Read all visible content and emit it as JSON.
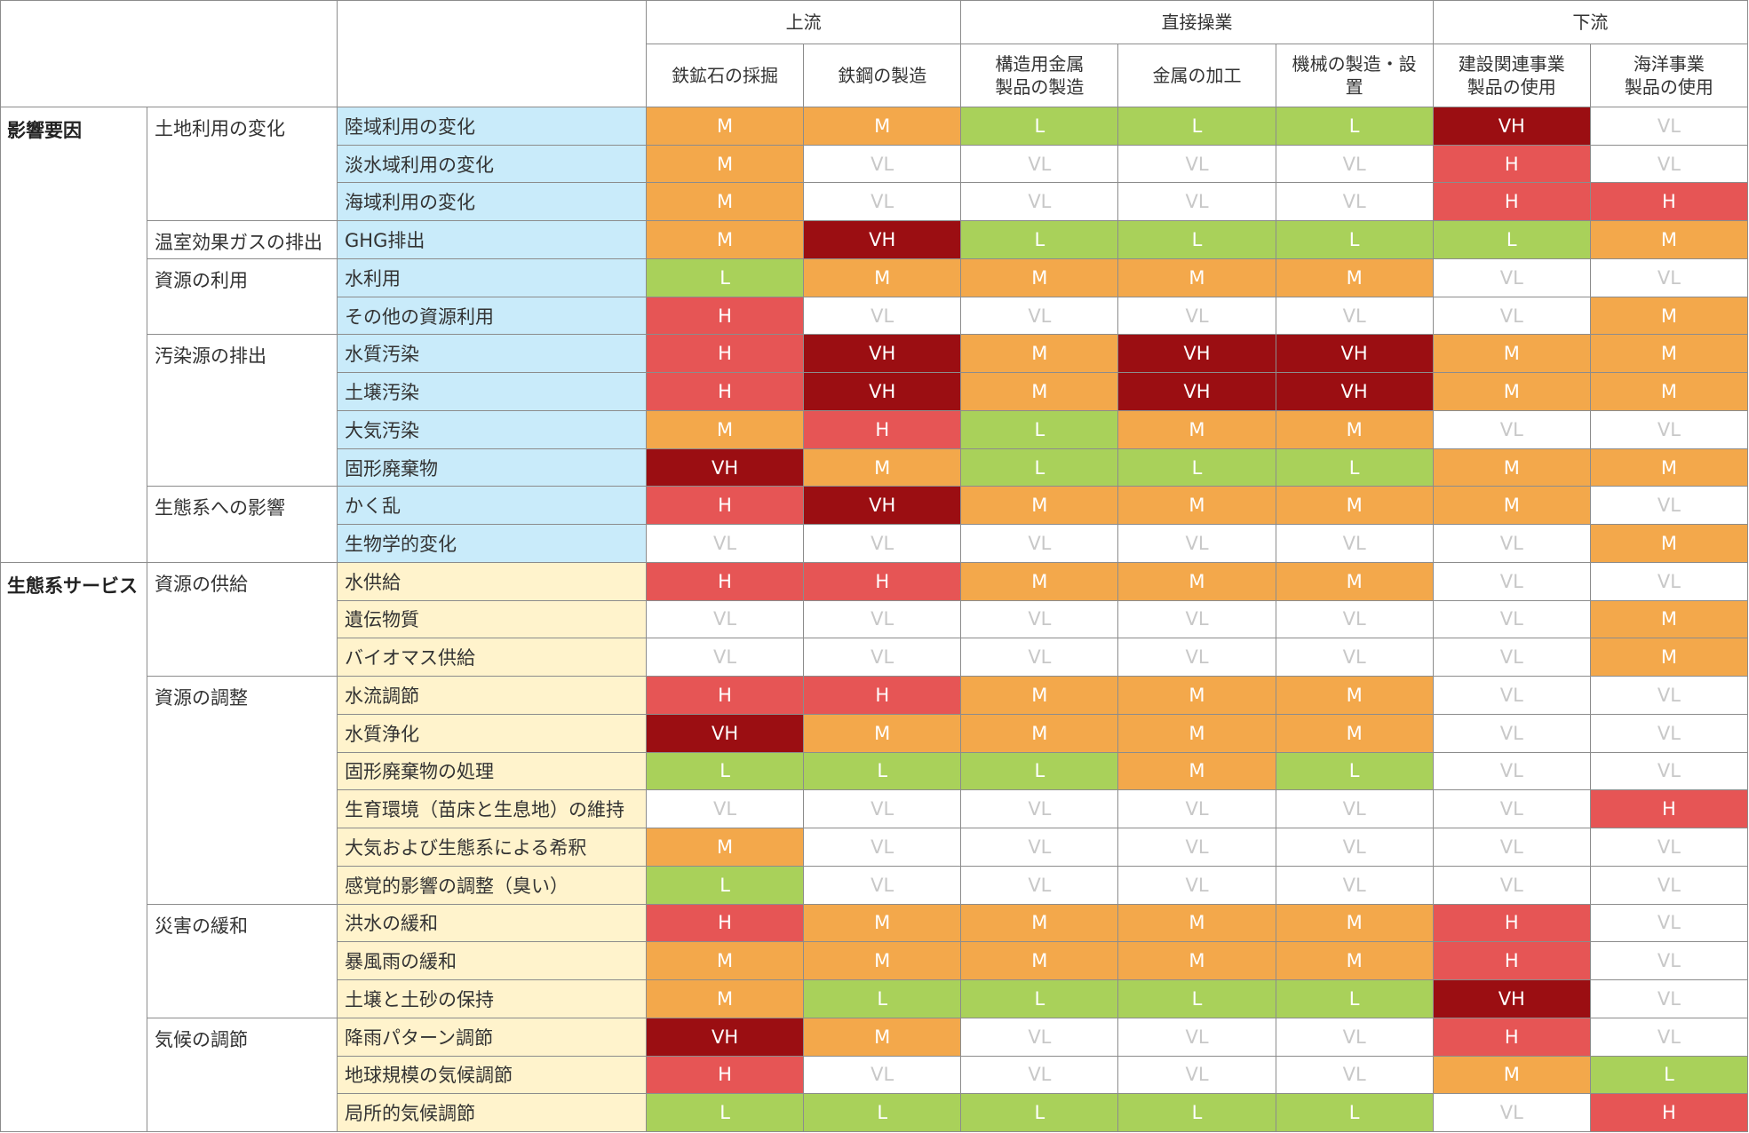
{
  "chart_data": {
    "type": "table",
    "stages": [
      {
        "label": "上流",
        "span": 2
      },
      {
        "label": "直接操業",
        "span": 3
      },
      {
        "label": "下流",
        "span": 2
      }
    ],
    "columns": [
      "鉄鉱石の採掘",
      "鉄鋼の製造",
      "構造用金属\n製品の製造",
      "金属の加工",
      "機械の製造・設\n置",
      "建設関連事業\n製品の使用",
      "海洋事業\n製品の使用"
    ],
    "levels": [
      "VL",
      "L",
      "M",
      "H",
      "VH"
    ],
    "level_colors": {
      "VL": "#ffffff",
      "L": "#a9d15a",
      "M": "#f3a84b",
      "H": "#e65555",
      "VH": "#9b0e12"
    },
    "level_text_colors": {
      "VL": "#c8c8c8",
      "L": "#ffffff",
      "M": "#ffffff",
      "H": "#ffffff",
      "VH": "#ffffff"
    },
    "categories": [
      {
        "label": "影響要因",
        "color": "#c9ebfa",
        "groups": [
          {
            "label": "土地利用の変化",
            "rows": [
              {
                "label": "陸域利用の変化",
                "values": [
                  "M",
                  "M",
                  "L",
                  "L",
                  "L",
                  "VH",
                  "VL"
                ]
              },
              {
                "label": "淡水域利用の変化",
                "values": [
                  "M",
                  "VL",
                  "VL",
                  "VL",
                  "VL",
                  "H",
                  "VL"
                ]
              },
              {
                "label": "海域利用の変化",
                "values": [
                  "M",
                  "VL",
                  "VL",
                  "VL",
                  "VL",
                  "H",
                  "H"
                ]
              }
            ]
          },
          {
            "label": "温室効果ガスの排出",
            "rows": [
              {
                "label": "GHG排出",
                "values": [
                  "M",
                  "VH",
                  "L",
                  "L",
                  "L",
                  "L",
                  "M"
                ]
              }
            ]
          },
          {
            "label": "資源の利用",
            "rows": [
              {
                "label": "水利用",
                "values": [
                  "L",
                  "M",
                  "M",
                  "M",
                  "M",
                  "VL",
                  "VL"
                ]
              },
              {
                "label": "その他の資源利用",
                "values": [
                  "H",
                  "VL",
                  "VL",
                  "VL",
                  "VL",
                  "VL",
                  "M"
                ]
              }
            ]
          },
          {
            "label": "汚染源の排出",
            "rows": [
              {
                "label": "水質汚染",
                "values": [
                  "H",
                  "VH",
                  "M",
                  "VH",
                  "VH",
                  "M",
                  "M"
                ]
              },
              {
                "label": "土壌汚染",
                "values": [
                  "H",
                  "VH",
                  "M",
                  "VH",
                  "VH",
                  "M",
                  "M"
                ]
              },
              {
                "label": "大気汚染",
                "values": [
                  "M",
                  "H",
                  "L",
                  "M",
                  "M",
                  "VL",
                  "VL"
                ]
              },
              {
                "label": "固形廃棄物",
                "values": [
                  "VH",
                  "M",
                  "L",
                  "L",
                  "L",
                  "M",
                  "M"
                ]
              }
            ]
          },
          {
            "label": "生態系への影響",
            "rows": [
              {
                "label": "かく乱",
                "values": [
                  "H",
                  "VH",
                  "M",
                  "M",
                  "M",
                  "M",
                  "VL"
                ]
              },
              {
                "label": "生物学的変化",
                "values": [
                  "VL",
                  "VL",
                  "VL",
                  "VL",
                  "VL",
                  "VL",
                  "M"
                ]
              }
            ]
          }
        ]
      },
      {
        "label": "生態系サービス",
        "color": "#fff3cc",
        "groups": [
          {
            "label": "資源の供給",
            "rows": [
              {
                "label": "水供給",
                "values": [
                  "H",
                  "H",
                  "M",
                  "M",
                  "M",
                  "VL",
                  "VL"
                ]
              },
              {
                "label": "遺伝物質",
                "values": [
                  "VL",
                  "VL",
                  "VL",
                  "VL",
                  "VL",
                  "VL",
                  "M"
                ]
              },
              {
                "label": "バイオマス供給",
                "values": [
                  "VL",
                  "VL",
                  "VL",
                  "VL",
                  "VL",
                  "VL",
                  "M"
                ]
              }
            ]
          },
          {
            "label": "資源の調整",
            "rows": [
              {
                "label": "水流調節",
                "values": [
                  "H",
                  "H",
                  "M",
                  "M",
                  "M",
                  "VL",
                  "VL"
                ]
              },
              {
                "label": "水質浄化",
                "values": [
                  "VH",
                  "M",
                  "M",
                  "M",
                  "M",
                  "VL",
                  "VL"
                ]
              },
              {
                "label": "固形廃棄物の処理",
                "values": [
                  "L",
                  "L",
                  "L",
                  "M",
                  "L",
                  "VL",
                  "VL"
                ]
              },
              {
                "label": "生育環境（苗床と生息地）の維持",
                "values": [
                  "VL",
                  "VL",
                  "VL",
                  "VL",
                  "VL",
                  "VL",
                  "H"
                ]
              },
              {
                "label": "大気および生態系による希釈",
                "values": [
                  "M",
                  "VL",
                  "VL",
                  "VL",
                  "VL",
                  "VL",
                  "VL"
                ]
              },
              {
                "label": "感覚的影響の調整（臭い）",
                "values": [
                  "L",
                  "VL",
                  "VL",
                  "VL",
                  "VL",
                  "VL",
                  "VL"
                ]
              }
            ]
          },
          {
            "label": "災害の緩和",
            "rows": [
              {
                "label": "洪水の緩和",
                "values": [
                  "H",
                  "M",
                  "M",
                  "M",
                  "M",
                  "H",
                  "VL"
                ]
              },
              {
                "label": "暴風雨の緩和",
                "values": [
                  "M",
                  "M",
                  "M",
                  "M",
                  "M",
                  "H",
                  "VL"
                ]
              },
              {
                "label": "土壌と土砂の保持",
                "values": [
                  "M",
                  "L",
                  "L",
                  "L",
                  "L",
                  "VH",
                  "VL"
                ]
              }
            ]
          },
          {
            "label": "気候の調節",
            "rows": [
              {
                "label": "降雨パターン調節",
                "values": [
                  "VH",
                  "M",
                  "VL",
                  "VL",
                  "VL",
                  "H",
                  "VL"
                ]
              },
              {
                "label": "地球規模の気候調節",
                "values": [
                  "H",
                  "VL",
                  "VL",
                  "VL",
                  "VL",
                  "M",
                  "L"
                ]
              },
              {
                "label": "局所的気候調節",
                "values": [
                  "L",
                  "L",
                  "L",
                  "L",
                  "L",
                  "VL",
                  "H"
                ]
              }
            ]
          }
        ]
      }
    ]
  }
}
